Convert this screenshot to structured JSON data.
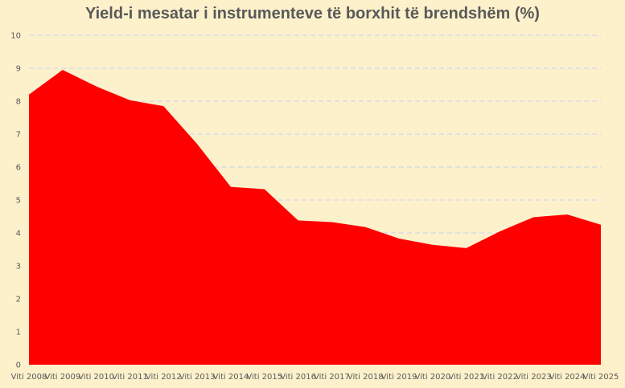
{
  "chart_data": {
    "type": "area",
    "title": "Yield-i mesatar i instrumenteve të borxhit të brendshëm (%)",
    "categories": [
      "Viti 2008",
      "Viti 2009",
      "Viti 2010",
      "Viti 2011",
      "Viti 2012",
      "Viti 2013",
      "Viti 2014",
      "Viti 2015",
      "Viti 2016",
      "Viti 2017",
      "Viti 2018",
      "Viti 2019",
      "Viti 2020",
      "Viti 2021",
      "Viti 2022",
      "Viti 2023",
      "Viti 2024",
      "Viti 2025"
    ],
    "values": [
      8.2,
      8.95,
      8.45,
      8.03,
      7.85,
      6.7,
      5.4,
      5.33,
      4.38,
      4.33,
      4.18,
      3.83,
      3.64,
      3.54,
      4.05,
      4.48,
      4.56,
      4.25
    ],
    "yticks": [
      "0",
      "1",
      "2",
      "3",
      "4",
      "5",
      "6",
      "7",
      "8",
      "9",
      "10"
    ],
    "ylim": [
      0,
      10
    ],
    "grid": true,
    "legend": "none",
    "colors": {
      "area": "#ff0000",
      "grid": "#d6dce5",
      "background": "#fdf1cc"
    }
  }
}
